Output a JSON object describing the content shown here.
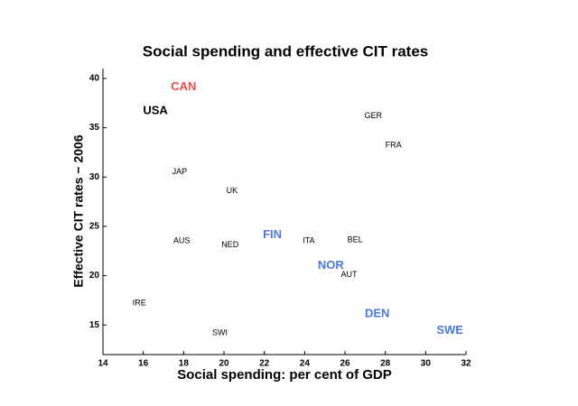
{
  "chart_data": {
    "type": "scatter",
    "title": "Social spending and effective CIT rates",
    "x_label": "Social spending: per cent of GDP",
    "y_label": "Effective CIT rates − 2006",
    "xlim": [
      14,
      32
    ],
    "xticks": [
      14,
      16,
      18,
      20,
      22,
      24,
      26,
      28,
      30,
      32
    ],
    "ylim": [
      12,
      41
    ],
    "yticks": [
      15,
      20,
      25,
      30,
      35,
      40
    ],
    "series": [
      {
        "color": "#f04a4a",
        "bold": true,
        "labels": [
          "CAN"
        ],
        "x": [
          18.0
        ],
        "values": [
          39.1
        ]
      },
      {
        "color": "#000000",
        "bold": true,
        "labels": [
          "USA"
        ],
        "x": [
          16.6
        ],
        "values": [
          36.7
        ]
      },
      {
        "color": "#4a78e0",
        "bold": true,
        "labels": [
          "FIN",
          "NOR",
          "DEN",
          "SWE"
        ],
        "x": [
          22.4,
          25.3,
          27.6,
          31.2
        ],
        "values": [
          24.1,
          21.0,
          16.1,
          14.4
        ]
      },
      {
        "color": "#000000",
        "bold": false,
        "labels": [
          "GER",
          "FRA",
          "JAP",
          "UK",
          "ITA",
          "BEL",
          "AUS",
          "NED",
          "AUT",
          "IRE",
          "SWI"
        ],
        "x": [
          27.4,
          28.4,
          17.8,
          20.4,
          24.2,
          26.5,
          17.9,
          20.3,
          26.2,
          15.8,
          19.8
        ],
        "values": [
          36.2,
          33.2,
          30.5,
          28.6,
          23.5,
          23.6,
          23.5,
          23.1,
          20.1,
          17.2,
          14.2
        ]
      }
    ]
  }
}
